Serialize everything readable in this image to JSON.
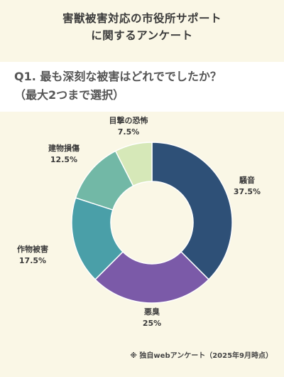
{
  "header": {
    "title_line1": "害獣被害対応の市役所サポート",
    "title_line2": "に関するアンケート"
  },
  "question": {
    "line1": "Q1. 最も深刻な被害はどれででしたか？",
    "line2": "（最大2つまで選択）"
  },
  "chart_data": {
    "type": "pie",
    "variant": "donut",
    "categories": [
      "騒音",
      "悪臭",
      "作物被害",
      "建物損傷",
      "目撃の恐怖"
    ],
    "values": [
      37.5,
      25,
      17.5,
      12.5,
      7.5
    ],
    "value_labels": [
      "37.5%",
      "25%",
      "17.5%",
      "12.5%",
      "7.5%"
    ],
    "colors": [
      "#2e5077",
      "#7b5aa8",
      "#4a9fa8",
      "#72b8a6",
      "#d6e8b8"
    ]
  },
  "footnote": "※ 独自webアンケート（2025年9月時点）"
}
